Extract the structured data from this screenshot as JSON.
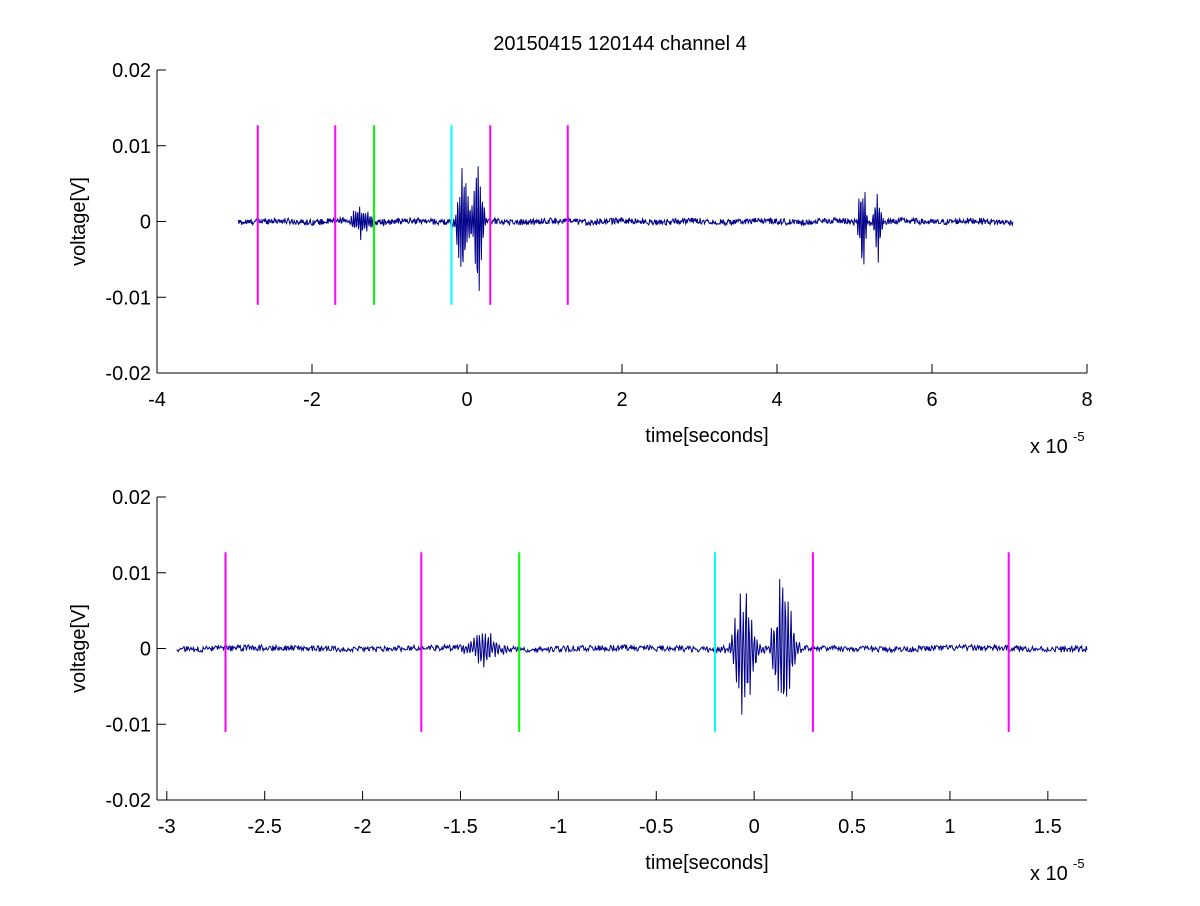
{
  "figure_title": "20150415 120144 channel 4",
  "chart_data": [
    {
      "type": "line",
      "title": "20150415 120144 channel 4",
      "xlabel": "time[seconds]",
      "ylabel": "voltage[V]",
      "x_exponent_label": "x 10",
      "x_exponent": "-5",
      "xlim": [
        -4,
        8
      ],
      "ylim": [
        -0.02,
        0.02
      ],
      "x_ticks": [
        -4,
        -2,
        0,
        2,
        4,
        6,
        8
      ],
      "x_tick_labels": [
        "-4",
        "-2",
        "0",
        "2",
        "4",
        "6",
        "8"
      ],
      "y_ticks": [
        -0.02,
        -0.01,
        0,
        0.01,
        0.02
      ],
      "y_tick_labels": [
        "-0.02",
        "-0.01",
        "0",
        "0.01",
        "0.02"
      ],
      "grid": false,
      "series": [
        {
          "color": "#00008b",
          "x_range": [
            -2.95,
            7.05
          ],
          "bursts": [
            {
              "center": -1.35,
              "width": 0.12,
              "amp": 0.0025
            },
            {
              "center": -0.05,
              "width": 0.08,
              "amp": 0.01
            },
            {
              "center": 0.15,
              "width": 0.06,
              "amp": 0.0115
            },
            {
              "center": 5.1,
              "width": 0.05,
              "amp": 0.0075
            },
            {
              "center": 5.3,
              "width": 0.05,
              "amp": 0.0065
            }
          ]
        }
      ],
      "markers": [
        {
          "x": -2.7,
          "color": "#ff00ff",
          "y": [
            -0.011,
            0.0127
          ]
        },
        {
          "x": -1.7,
          "color": "#ff00ff",
          "y": [
            -0.011,
            0.0127
          ]
        },
        {
          "x": -1.2,
          "color": "#00ff00",
          "y": [
            -0.011,
            0.0127
          ]
        },
        {
          "x": -0.2,
          "color": "#00ffff",
          "y": [
            -0.011,
            0.0127
          ]
        },
        {
          "x": 0.3,
          "color": "#ff00ff",
          "y": [
            -0.011,
            0.0127
          ]
        },
        {
          "x": 1.3,
          "color": "#ff00ff",
          "y": [
            -0.011,
            0.0127
          ]
        }
      ]
    },
    {
      "type": "line",
      "title": "",
      "xlabel": "time[seconds]",
      "ylabel": "voltage[V]",
      "x_exponent_label": "x 10",
      "x_exponent": "-5",
      "xlim": [
        -3.05,
        1.7
      ],
      "ylim": [
        -0.02,
        0.02
      ],
      "x_ticks": [
        -3,
        -2.5,
        -2,
        -1.5,
        -1,
        -0.5,
        0,
        0.5,
        1,
        1.5
      ],
      "x_tick_labels": [
        "-3",
        "-2.5",
        "-2",
        "-1.5",
        "-1",
        "-0.5",
        "0",
        "0.5",
        "1",
        "1.5"
      ],
      "y_ticks": [
        -0.02,
        -0.01,
        0,
        0.01,
        0.02
      ],
      "y_tick_labels": [
        "-0.02",
        "-0.01",
        "0",
        "0.01",
        "0.02"
      ],
      "grid": false,
      "series": [
        {
          "color": "#00008b",
          "x_range": [
            -2.95,
            1.7
          ],
          "bursts": [
            {
              "center": -1.38,
              "width": 0.08,
              "amp": 0.0025
            },
            {
              "center": -0.05,
              "width": 0.05,
              "amp": 0.01
            },
            {
              "center": 0.15,
              "width": 0.05,
              "amp": 0.0115
            }
          ]
        }
      ],
      "markers": [
        {
          "x": -2.7,
          "color": "#ff00ff",
          "y": [
            -0.011,
            0.0127
          ]
        },
        {
          "x": -1.7,
          "color": "#ff00ff",
          "y": [
            -0.011,
            0.0127
          ]
        },
        {
          "x": -1.2,
          "color": "#00ff00",
          "y": [
            -0.011,
            0.0127
          ]
        },
        {
          "x": -0.2,
          "color": "#00ffff",
          "y": [
            -0.011,
            0.0127
          ]
        },
        {
          "x": 0.3,
          "color": "#ff00ff",
          "y": [
            -0.011,
            0.0127
          ]
        },
        {
          "x": 1.3,
          "color": "#ff00ff",
          "y": [
            -0.011,
            0.0127
          ]
        }
      ]
    }
  ]
}
